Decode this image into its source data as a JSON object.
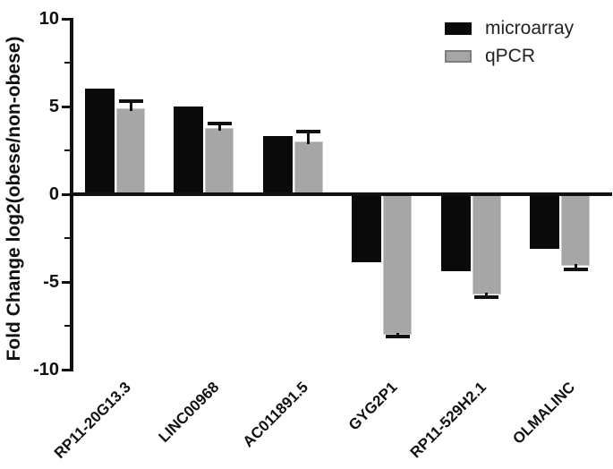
{
  "chart_data": {
    "type": "bar",
    "title": "",
    "ylabel": "Fold Change log2(obese/non-obese)",
    "xlabel": "",
    "ylim": [
      -10,
      10
    ],
    "yticks": [
      10,
      5,
      0,
      -5,
      -10
    ],
    "minor_tick_step": 2.5,
    "grid": false,
    "legend_position": "top-right",
    "categories": [
      "RP11-20G13.3",
      "LINC00968",
      "AC011891.5",
      "GYG2P1",
      "RP11-529H2.1",
      "OLMALINC"
    ],
    "series": [
      {
        "name": "microarray",
        "color": "#0a0a0a",
        "values": [
          6.0,
          5.0,
          3.3,
          -3.8,
          -4.3,
          -3.0
        ]
      },
      {
        "name": "qPCR",
        "color": "#a6a6a6",
        "values": [
          4.9,
          3.8,
          3.0,
          -7.9,
          -5.6,
          -4.0
        ],
        "errors": [
          0.4,
          0.25,
          0.55,
          0.2,
          0.25,
          0.3
        ]
      }
    ]
  }
}
